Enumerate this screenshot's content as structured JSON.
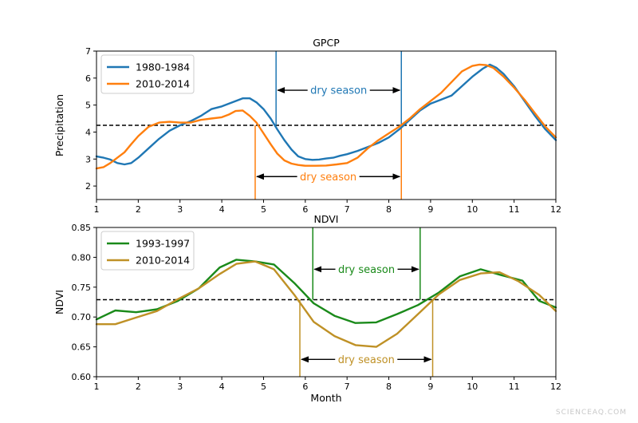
{
  "watermark": "SCIENCEAQ.COM",
  "xlabel": "Month",
  "chart_data": [
    {
      "type": "line",
      "title": "GPCP",
      "xlabel": "",
      "ylabel": "Precipitation",
      "xlim": [
        1,
        12
      ],
      "ylim": [
        1.5,
        7
      ],
      "xticks": [
        "1",
        "2",
        "3",
        "4",
        "5",
        "6",
        "7",
        "8",
        "9",
        "10",
        "11",
        "12"
      ],
      "yticks": [
        "2",
        "3",
        "4",
        "5",
        "6",
        "7"
      ],
      "threshold": 4.25,
      "series": [
        {
          "name": "1980-1984",
          "color": "#1f77b4",
          "x": [
            1,
            1.17,
            1.33,
            1.5,
            1.67,
            1.83,
            2,
            2.25,
            2.5,
            2.75,
            3,
            3.25,
            3.5,
            3.75,
            4,
            4.25,
            4.5,
            4.67,
            4.83,
            5,
            5.17,
            5.33,
            5.5,
            5.67,
            5.83,
            6,
            6.17,
            6.33,
            6.5,
            6.67,
            6.83,
            7,
            7.25,
            7.5,
            7.75,
            8,
            8.25,
            8.5,
            8.75,
            9,
            9.25,
            9.5,
            9.75,
            10,
            10.25,
            10.42,
            10.58,
            10.75,
            11,
            11.25,
            11.5,
            11.75,
            12
          ],
          "y": [
            3.1,
            3.05,
            2.98,
            2.85,
            2.8,
            2.85,
            3.05,
            3.4,
            3.75,
            4.05,
            4.25,
            4.4,
            4.6,
            4.85,
            4.95,
            5.1,
            5.25,
            5.25,
            5.1,
            4.85,
            4.5,
            4.1,
            3.7,
            3.35,
            3.1,
            3.0,
            2.97,
            2.98,
            3.02,
            3.05,
            3.12,
            3.18,
            3.3,
            3.45,
            3.6,
            3.8,
            4.1,
            4.45,
            4.8,
            5.05,
            5.2,
            5.35,
            5.7,
            6.05,
            6.35,
            6.5,
            6.38,
            6.15,
            5.7,
            5.15,
            4.6,
            4.1,
            3.7
          ]
        },
        {
          "name": "2010-2014",
          "color": "#ff7f0e",
          "x": [
            1,
            1.17,
            1.33,
            1.5,
            1.67,
            1.83,
            2,
            2.25,
            2.5,
            2.75,
            3,
            3.25,
            3.5,
            3.75,
            4,
            4.17,
            4.33,
            4.5,
            4.67,
            4.83,
            5,
            5.17,
            5.33,
            5.5,
            5.67,
            5.83,
            6,
            6.25,
            6.5,
            6.75,
            7,
            7.25,
            7.5,
            7.75,
            8,
            8.25,
            8.5,
            8.75,
            9,
            9.25,
            9.5,
            9.75,
            10,
            10.17,
            10.33,
            10.5,
            10.75,
            11,
            11.25,
            11.5,
            11.75,
            12
          ],
          "y": [
            2.65,
            2.7,
            2.85,
            3.05,
            3.25,
            3.55,
            3.85,
            4.2,
            4.35,
            4.38,
            4.35,
            4.35,
            4.45,
            4.5,
            4.55,
            4.65,
            4.78,
            4.8,
            4.6,
            4.35,
            3.95,
            3.55,
            3.2,
            2.95,
            2.83,
            2.78,
            2.75,
            2.75,
            2.76,
            2.8,
            2.85,
            3.05,
            3.4,
            3.7,
            3.95,
            4.2,
            4.5,
            4.85,
            5.15,
            5.45,
            5.85,
            6.25,
            6.45,
            6.5,
            6.48,
            6.38,
            6.05,
            5.65,
            5.2,
            4.7,
            4.2,
            3.8
          ]
        }
      ],
      "annotations": [
        {
          "text": "dry season",
          "color": "#1f77b4",
          "x0": 5.3,
          "x1": 8.3,
          "y": 5.55,
          "line_from_y": 4.25,
          "line_to_y": 7
        },
        {
          "text": "dry season",
          "color": "#ff7f0e",
          "x0": 4.8,
          "x1": 8.3,
          "y": 2.35,
          "line_from_y": 1.5,
          "line_to_y": 4.25
        }
      ]
    },
    {
      "type": "line",
      "title": "NDVI",
      "xlabel": "Month",
      "ylabel": "NDVI",
      "xlim": [
        1,
        12
      ],
      "ylim": [
        0.6,
        0.85
      ],
      "xticks": [
        "1",
        "2",
        "3",
        "4",
        "5",
        "6",
        "7",
        "8",
        "9",
        "10",
        "11",
        "12"
      ],
      "yticks": [
        "0.60",
        "0.65",
        "0.70",
        "0.75",
        "0.80",
        "0.85"
      ],
      "threshold": 0.729,
      "series": [
        {
          "name": "1993-1997",
          "color": "#1a8a1a",
          "x": [
            1,
            1.45,
            1.95,
            2.45,
            2.95,
            3.45,
            3.95,
            4.35,
            4.8,
            5.25,
            5.75,
            6.2,
            6.7,
            7.2,
            7.7,
            8.2,
            8.7,
            9.2,
            9.7,
            10.2,
            10.7,
            11.2,
            11.6,
            12
          ],
          "y": [
            0.696,
            0.711,
            0.708,
            0.713,
            0.727,
            0.748,
            0.783,
            0.796,
            0.793,
            0.788,
            0.756,
            0.723,
            0.702,
            0.69,
            0.691,
            0.705,
            0.72,
            0.741,
            0.768,
            0.78,
            0.77,
            0.761,
            0.727,
            0.716
          ]
        },
        {
          "name": "2010-2014",
          "color": "#bf9126",
          "x": [
            1,
            1.45,
            1.95,
            2.45,
            2.95,
            3.45,
            3.95,
            4.35,
            4.8,
            5.25,
            5.75,
            6.2,
            6.7,
            7.2,
            7.7,
            8.2,
            8.7,
            9.2,
            9.7,
            10.2,
            10.65,
            11.1,
            11.6,
            12
          ],
          "y": [
            0.688,
            0.688,
            0.699,
            0.71,
            0.73,
            0.748,
            0.772,
            0.789,
            0.793,
            0.78,
            0.736,
            0.692,
            0.668,
            0.653,
            0.65,
            0.672,
            0.705,
            0.738,
            0.762,
            0.773,
            0.775,
            0.76,
            0.737,
            0.71
          ]
        }
      ],
      "annotations": [
        {
          "text": "dry season",
          "color": "#1a8a1a",
          "x0": 6.18,
          "x1": 8.75,
          "y": 0.78,
          "line_from_y": 0.729,
          "line_to_y": 0.85
        },
        {
          "text": "dry season",
          "color": "#bf9126",
          "x0": 5.87,
          "x1": 9.05,
          "y": 0.629,
          "line_from_y": 0.6,
          "line_to_y": 0.729
        }
      ]
    }
  ]
}
